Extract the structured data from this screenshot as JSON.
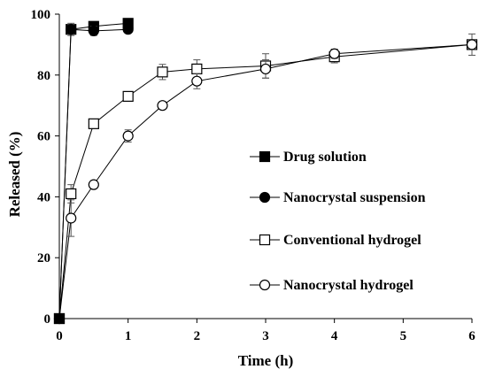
{
  "chart_data": {
    "type": "line",
    "xlabel": "Time (h)",
    "ylabel": "Released (%)",
    "xlim": [
      0,
      6
    ],
    "ylim": [
      0,
      100
    ],
    "xticks": [
      "0",
      "1",
      "2",
      "3",
      "4",
      "5",
      "6"
    ],
    "yticks": [
      "0",
      "20",
      "40",
      "60",
      "80",
      "100"
    ],
    "grid": false,
    "legend_position": "right-center",
    "series": [
      {
        "name": "Drug solution",
        "marker": "filled-square",
        "color": "#000000",
        "x": [
          0,
          0.17,
          0.5,
          1
        ],
        "y": [
          0,
          95,
          96,
          97
        ],
        "err": [
          0,
          2,
          1.5,
          1
        ]
      },
      {
        "name": "Nanocrystal suspension",
        "marker": "filled-circle",
        "color": "#000000",
        "x": [
          0,
          0.17,
          0.5,
          1
        ],
        "y": [
          0,
          95,
          94.5,
          95
        ],
        "err": [
          0,
          1.5,
          1.5,
          1
        ]
      },
      {
        "name": "Conventional hydrogel",
        "marker": "open-square",
        "color": "#000000",
        "x": [
          0,
          0.17,
          0.5,
          1,
          1.5,
          2,
          3,
          4,
          6
        ],
        "y": [
          0,
          41,
          64,
          73,
          81,
          82,
          83,
          86,
          90
        ],
        "err": [
          0,
          3,
          1,
          1,
          2.5,
          3,
          4,
          2,
          3.5
        ]
      },
      {
        "name": "Nanocrystal hydrogel",
        "marker": "open-circle",
        "color": "#000000",
        "x": [
          0,
          0.17,
          0.5,
          1,
          1.5,
          2,
          3,
          4,
          6
        ],
        "y": [
          0,
          33,
          44,
          60,
          70,
          78,
          82,
          87,
          90
        ],
        "err": [
          0,
          6,
          1,
          2,
          1,
          2.5,
          3,
          1.5,
          1.5
        ]
      }
    ]
  }
}
